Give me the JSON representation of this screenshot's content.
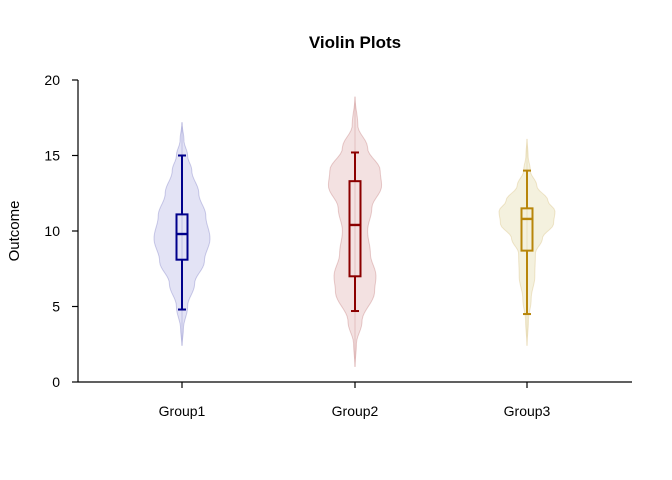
{
  "chart_data": {
    "type": "violin",
    "title": "Violin Plots",
    "xlabel": "",
    "ylabel": "Outcome",
    "ylim": [
      0,
      20
    ],
    "yticks": [
      "0",
      "5",
      "10",
      "15",
      "20"
    ],
    "categories": [
      "Group1",
      "Group2",
      "Group3"
    ],
    "grid": false,
    "series": [
      {
        "color": "#00008B",
        "fill": "#E0E0F4",
        "range": [
          2.4,
          17.2
        ],
        "box": {
          "whisker_low": 4.8,
          "q1": 8.1,
          "median": 9.8,
          "q3": 11.1,
          "whisker_high": 15.0
        },
        "density": [
          [
            2.4,
            0.0
          ],
          [
            3.5,
            0.05
          ],
          [
            5.0,
            0.2
          ],
          [
            6.5,
            0.45
          ],
          [
            8.0,
            0.8
          ],
          [
            9.5,
            1.0
          ],
          [
            11.0,
            0.85
          ],
          [
            12.5,
            0.6
          ],
          [
            14.0,
            0.35
          ],
          [
            15.0,
            0.2
          ],
          [
            16.0,
            0.07
          ],
          [
            17.2,
            0.0
          ]
        ]
      },
      {
        "color": "#8B0000",
        "fill": "#F2DEDE",
        "range": [
          1.0,
          18.9
        ],
        "box": {
          "whisker_low": 4.7,
          "q1": 7.0,
          "median": 10.4,
          "q3": 13.3,
          "whisker_high": 15.2
        },
        "density": [
          [
            1.0,
            0.0
          ],
          [
            2.5,
            0.05
          ],
          [
            4.0,
            0.25
          ],
          [
            6.0,
            0.7
          ],
          [
            7.0,
            0.75
          ],
          [
            8.5,
            0.55
          ],
          [
            10.0,
            0.45
          ],
          [
            11.5,
            0.6
          ],
          [
            13.0,
            0.95
          ],
          [
            14.0,
            0.9
          ],
          [
            15.5,
            0.45
          ],
          [
            17.0,
            0.1
          ],
          [
            18.9,
            0.0
          ]
        ]
      },
      {
        "color": "#B8860B",
        "fill": "#F3EFDA",
        "range": [
          2.4,
          16.1
        ],
        "box": {
          "whisker_low": 4.5,
          "q1": 8.7,
          "median": 10.8,
          "q3": 11.5,
          "whisker_high": 14.0
        },
        "density": [
          [
            2.4,
            0.0
          ],
          [
            4.0,
            0.05
          ],
          [
            5.5,
            0.15
          ],
          [
            7.0,
            0.28
          ],
          [
            8.5,
            0.3
          ],
          [
            9.5,
            0.55
          ],
          [
            10.5,
            0.95
          ],
          [
            11.3,
            1.0
          ],
          [
            12.0,
            0.75
          ],
          [
            13.0,
            0.35
          ],
          [
            14.0,
            0.12
          ],
          [
            15.0,
            0.04
          ],
          [
            16.1,
            0.0
          ]
        ]
      }
    ]
  }
}
